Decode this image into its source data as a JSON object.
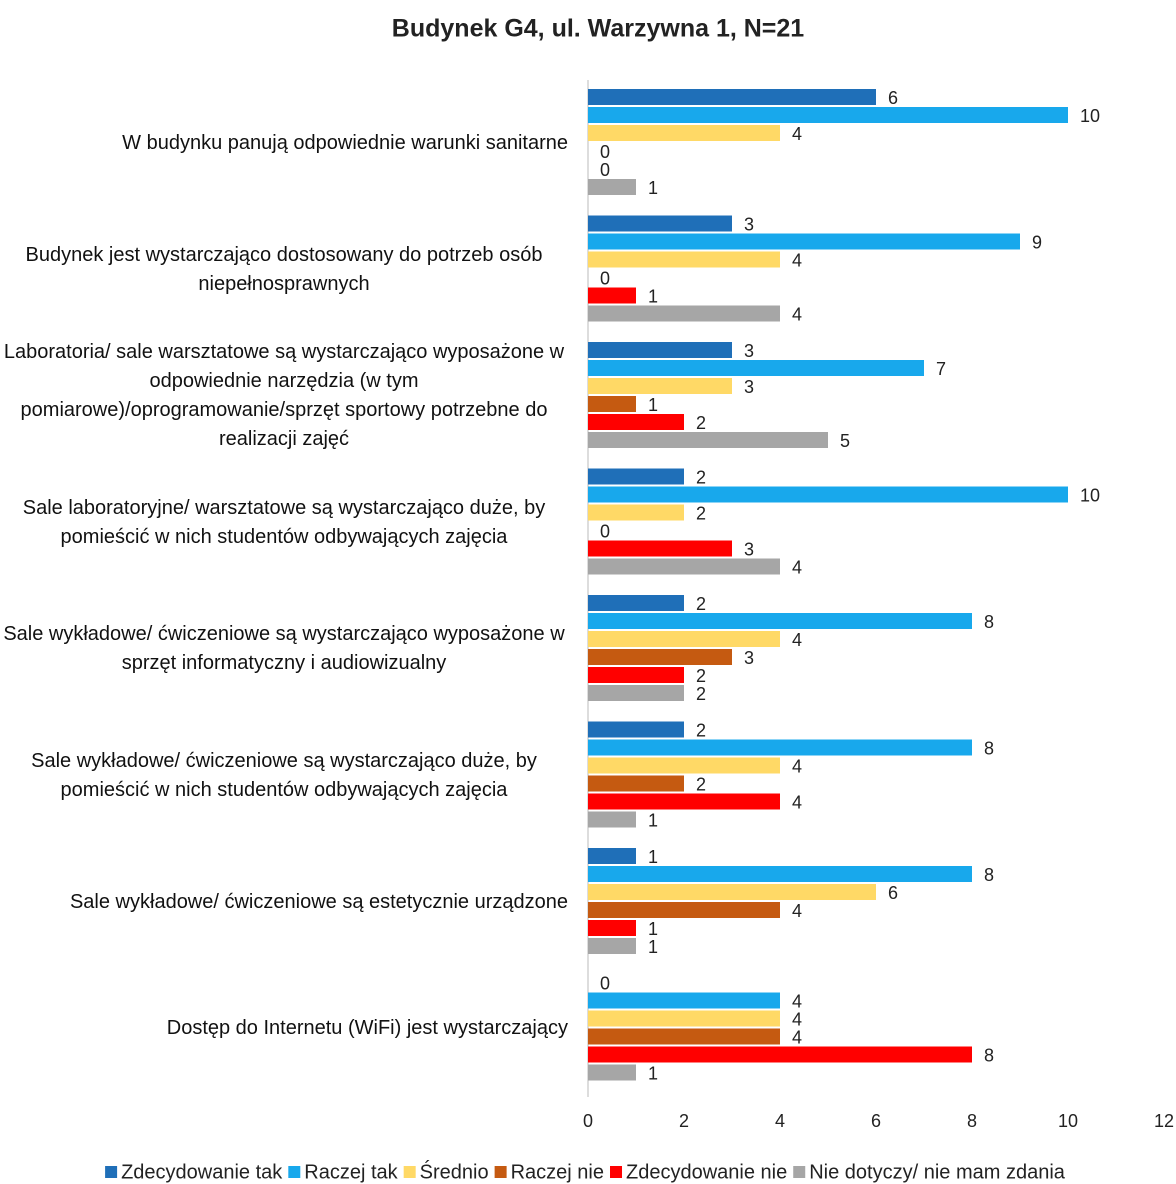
{
  "chart_data": {
    "type": "hbar",
    "title": "Budynek G4, ul. Warzywna 1, N=21",
    "categories": [
      "W budynku panują odpowiednie warunki sanitarne",
      "Budynek jest wystarczająco dostosowany do potrzeb osób niepełnosprawnych",
      "Laboratoria/ sale warsztatowe są wystarczająco wyposażone w odpowiednie narzędzia (w tym pomiarowe)/oprogramowanie/sprzęt sportowy potrzebne do realizacji zajęć",
      "Sale laboratoryjne/ warsztatowe są wystarczająco duże, by pomieścić w nich studentów odbywających zajęcia",
      "Sale wykładowe/ ćwiczeniowe są wystarczająco wyposażone w sprzęt informatyczny i audiowizualny",
      "Sale wykładowe/ ćwiczeniowe są wystarczająco duże, by pomieścić w nich studentów odbywających zajęcia",
      "Sale wykładowe/ ćwiczeniowe są estetycznie urządzone",
      "Dostęp do Internetu (WiFi) jest wystarczający"
    ],
    "series": [
      {
        "name": "Zdecydowanie tak",
        "color": "#1f6fb8",
        "values": [
          6,
          3,
          3,
          2,
          2,
          2,
          1,
          0
        ]
      },
      {
        "name": "Raczej tak",
        "color": "#18a8ec",
        "values": [
          10,
          9,
          7,
          10,
          8,
          8,
          8,
          4
        ]
      },
      {
        "name": "Średnio",
        "color": "#ffd966",
        "values": [
          4,
          4,
          3,
          2,
          4,
          4,
          6,
          4
        ]
      },
      {
        "name": "Raczej nie",
        "color": "#c55a11",
        "values": [
          0,
          0,
          1,
          0,
          3,
          2,
          4,
          4
        ]
      },
      {
        "name": "Zdecydowanie nie",
        "color": "#ff0000",
        "values": [
          0,
          1,
          2,
          3,
          2,
          4,
          1,
          8
        ]
      },
      {
        "name": "Nie dotyczy/ nie mam zdania",
        "color": "#a6a6a6",
        "values": [
          1,
          4,
          5,
          4,
          2,
          1,
          1,
          1
        ]
      }
    ],
    "xlim": [
      0,
      12
    ],
    "xticks": [
      0,
      2,
      4,
      6,
      8,
      10,
      12
    ],
    "legend": "bottom"
  }
}
